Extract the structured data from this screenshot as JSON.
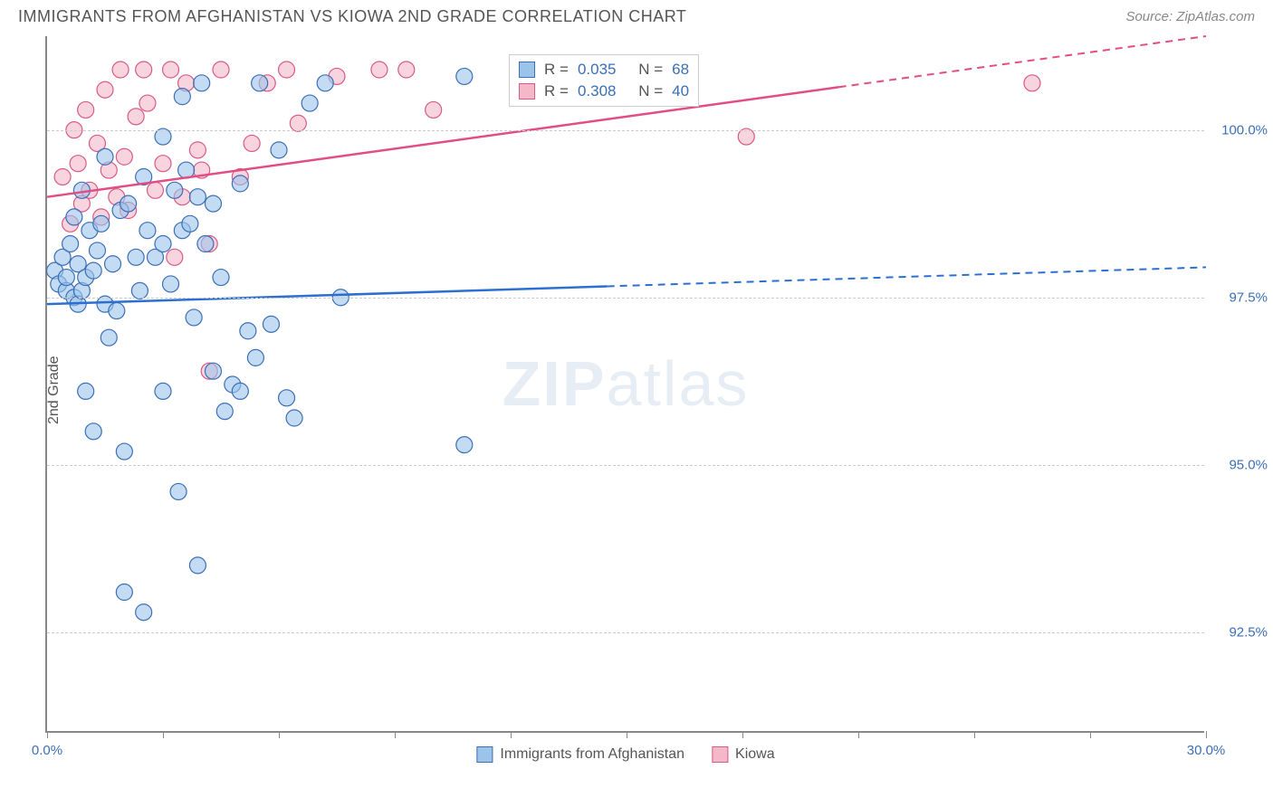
{
  "header": {
    "title": "IMMIGRANTS FROM AFGHANISTAN VS KIOWA 2ND GRADE CORRELATION CHART",
    "source": "Source: ZipAtlas.com"
  },
  "chart": {
    "type": "scatter",
    "y_axis_label": "2nd Grade",
    "watermark_bold": "ZIP",
    "watermark_light": "atlas",
    "background_color": "#ffffff",
    "grid_color": "#cccccc",
    "axis_color": "#888888",
    "xlim": [
      0,
      30
    ],
    "ylim": [
      91.0,
      101.4
    ],
    "x_ticks": [
      0,
      3,
      6,
      9,
      12,
      15,
      18,
      21,
      24,
      27,
      30
    ],
    "x_tick_labels": {
      "0": "0.0%",
      "30": "30.0%"
    },
    "y_ticks": [
      92.5,
      95.0,
      97.5,
      100.0
    ],
    "y_tick_labels": [
      "92.5%",
      "95.0%",
      "97.5%",
      "100.0%"
    ],
    "series": [
      {
        "name": "Immigrants from Afghanistan",
        "fill_color": "#9cc4eb",
        "stroke_color": "#3b6fb6",
        "line_color": "#2d6fd1",
        "fill_opacity": 0.6,
        "marker_radius": 9,
        "r": "0.035",
        "n": "68",
        "trend": {
          "x1": 0,
          "y1": 97.4,
          "x2": 30,
          "y2": 97.95,
          "solid_until_x": 14.5
        },
        "points": [
          [
            0.2,
            97.9
          ],
          [
            0.3,
            97.7
          ],
          [
            0.4,
            98.1
          ],
          [
            0.5,
            97.6
          ],
          [
            0.5,
            97.8
          ],
          [
            0.6,
            98.3
          ],
          [
            0.7,
            97.5
          ],
          [
            0.7,
            98.7
          ],
          [
            0.8,
            97.4
          ],
          [
            0.8,
            98.0
          ],
          [
            0.9,
            99.1
          ],
          [
            0.9,
            97.6
          ],
          [
            1.0,
            97.8
          ],
          [
            1.0,
            96.1
          ],
          [
            1.1,
            98.5
          ],
          [
            1.2,
            95.5
          ],
          [
            1.2,
            97.9
          ],
          [
            1.3,
            98.2
          ],
          [
            1.4,
            98.6
          ],
          [
            1.5,
            97.4
          ],
          [
            1.5,
            99.6
          ],
          [
            1.6,
            96.9
          ],
          [
            1.7,
            98.0
          ],
          [
            1.8,
            97.3
          ],
          [
            1.9,
            98.8
          ],
          [
            2.0,
            95.2
          ],
          [
            2.0,
            93.1
          ],
          [
            2.1,
            98.9
          ],
          [
            2.3,
            98.1
          ],
          [
            2.4,
            97.6
          ],
          [
            2.5,
            99.3
          ],
          [
            2.5,
            92.8
          ],
          [
            2.6,
            98.5
          ],
          [
            2.8,
            98.1
          ],
          [
            3.0,
            99.9
          ],
          [
            3.0,
            98.3
          ],
          [
            3.0,
            96.1
          ],
          [
            3.2,
            97.7
          ],
          [
            3.3,
            99.1
          ],
          [
            3.4,
            94.6
          ],
          [
            3.5,
            98.5
          ],
          [
            3.5,
            100.5
          ],
          [
            3.6,
            99.4
          ],
          [
            3.7,
            98.6
          ],
          [
            3.8,
            97.2
          ],
          [
            3.9,
            99.0
          ],
          [
            3.9,
            93.5
          ],
          [
            4.0,
            100.7
          ],
          [
            4.1,
            98.3
          ],
          [
            4.3,
            96.4
          ],
          [
            4.3,
            98.9
          ],
          [
            4.5,
            97.8
          ],
          [
            4.6,
            95.8
          ],
          [
            4.8,
            96.2
          ],
          [
            5.0,
            99.2
          ],
          [
            5.0,
            96.1
          ],
          [
            5.2,
            97.0
          ],
          [
            5.4,
            96.6
          ],
          [
            5.5,
            100.7
          ],
          [
            5.8,
            97.1
          ],
          [
            6.0,
            99.7
          ],
          [
            6.2,
            96.0
          ],
          [
            6.4,
            95.7
          ],
          [
            6.8,
            100.4
          ],
          [
            7.2,
            100.7
          ],
          [
            7.6,
            97.5
          ],
          [
            10.8,
            100.8
          ],
          [
            10.8,
            95.3
          ]
        ]
      },
      {
        "name": "Kiowa",
        "fill_color": "#f4b8c8",
        "stroke_color": "#d95a87",
        "line_color": "#e24d84",
        "fill_opacity": 0.6,
        "marker_radius": 9,
        "r": "0.308",
        "n": "40",
        "trend": {
          "x1": 0,
          "y1": 99.0,
          "x2": 30,
          "y2": 101.4,
          "solid_until_x": 20.5
        },
        "points": [
          [
            0.4,
            99.3
          ],
          [
            0.6,
            98.6
          ],
          [
            0.7,
            100.0
          ],
          [
            0.8,
            99.5
          ],
          [
            0.9,
            98.9
          ],
          [
            1.0,
            100.3
          ],
          [
            1.1,
            99.1
          ],
          [
            1.3,
            99.8
          ],
          [
            1.4,
            98.7
          ],
          [
            1.5,
            100.6
          ],
          [
            1.6,
            99.4
          ],
          [
            1.8,
            99.0
          ],
          [
            1.9,
            100.9
          ],
          [
            2.0,
            99.6
          ],
          [
            2.1,
            98.8
          ],
          [
            2.3,
            100.2
          ],
          [
            2.5,
            100.9
          ],
          [
            2.6,
            100.4
          ],
          [
            2.8,
            99.1
          ],
          [
            3.0,
            99.5
          ],
          [
            3.2,
            100.9
          ],
          [
            3.3,
            98.1
          ],
          [
            3.5,
            99.0
          ],
          [
            3.6,
            100.7
          ],
          [
            3.9,
            99.7
          ],
          [
            4.0,
            99.4
          ],
          [
            4.2,
            98.3
          ],
          [
            4.2,
            96.4
          ],
          [
            4.5,
            100.9
          ],
          [
            5.0,
            99.3
          ],
          [
            5.3,
            99.8
          ],
          [
            5.7,
            100.7
          ],
          [
            6.2,
            100.9
          ],
          [
            6.5,
            100.1
          ],
          [
            7.5,
            100.8
          ],
          [
            8.6,
            100.9
          ],
          [
            9.3,
            100.9
          ],
          [
            10.0,
            100.3
          ],
          [
            18.1,
            99.9
          ],
          [
            25.5,
            100.7
          ]
        ]
      }
    ],
    "legend": {
      "series1_label": "Immigrants from Afghanistan",
      "series2_label": "Kiowa"
    },
    "stats_labels": {
      "r_prefix": "R = ",
      "n_prefix": "N = "
    }
  }
}
